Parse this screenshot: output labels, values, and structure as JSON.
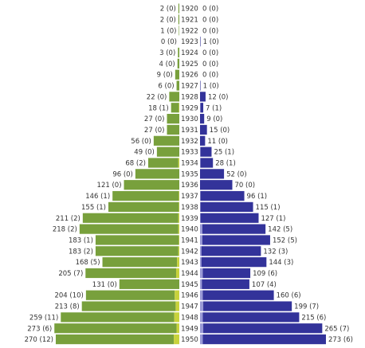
{
  "chart_data": {
    "type": "bar",
    "orientation": "horizontal",
    "layout": "population-pyramid",
    "categories": [
      "1920",
      "1921",
      "1922",
      "1923",
      "1924",
      "1925",
      "1926",
      "1927",
      "1928",
      "1929",
      "1930",
      "1931",
      "1932",
      "1933",
      "1934",
      "1935",
      "1936",
      "1937",
      "1938",
      "1939",
      "1940",
      "1941",
      "1942",
      "1943",
      "1944",
      "1945",
      "1946",
      "1947",
      "1948",
      "1949",
      "1950"
    ],
    "series": [
      {
        "side": "left",
        "color": "#78a03c",
        "sub_color": "#c8d23c",
        "values": [
          2,
          2,
          1,
          0,
          3,
          4,
          9,
          6,
          22,
          18,
          27,
          27,
          56,
          49,
          68,
          96,
          121,
          146,
          155,
          211,
          218,
          183,
          183,
          168,
          205,
          131,
          204,
          213,
          259,
          273,
          270
        ],
        "sub_values": [
          0,
          0,
          0,
          0,
          0,
          0,
          0,
          0,
          0,
          1,
          0,
          0,
          0,
          0,
          2,
          0,
          0,
          1,
          1,
          2,
          2,
          1,
          2,
          5,
          7,
          0,
          10,
          8,
          11,
          6,
          12
        ]
      },
      {
        "side": "right",
        "color": "#33339a",
        "sub_color": "#9a9ad6",
        "values": [
          0,
          0,
          0,
          1,
          0,
          0,
          0,
          1,
          12,
          7,
          9,
          15,
          11,
          25,
          28,
          52,
          70,
          96,
          115,
          127,
          142,
          152,
          132,
          144,
          109,
          107,
          160,
          199,
          215,
          265,
          273
        ],
        "sub_values": [
          0,
          0,
          0,
          0,
          0,
          0,
          0,
          0,
          0,
          1,
          0,
          0,
          0,
          1,
          1,
          0,
          0,
          1,
          1,
          1,
          5,
          5,
          3,
          3,
          6,
          4,
          6,
          7,
          6,
          7,
          6
        ]
      }
    ],
    "label_format": "{value} ({sub})",
    "grid": false,
    "legend": "none"
  }
}
